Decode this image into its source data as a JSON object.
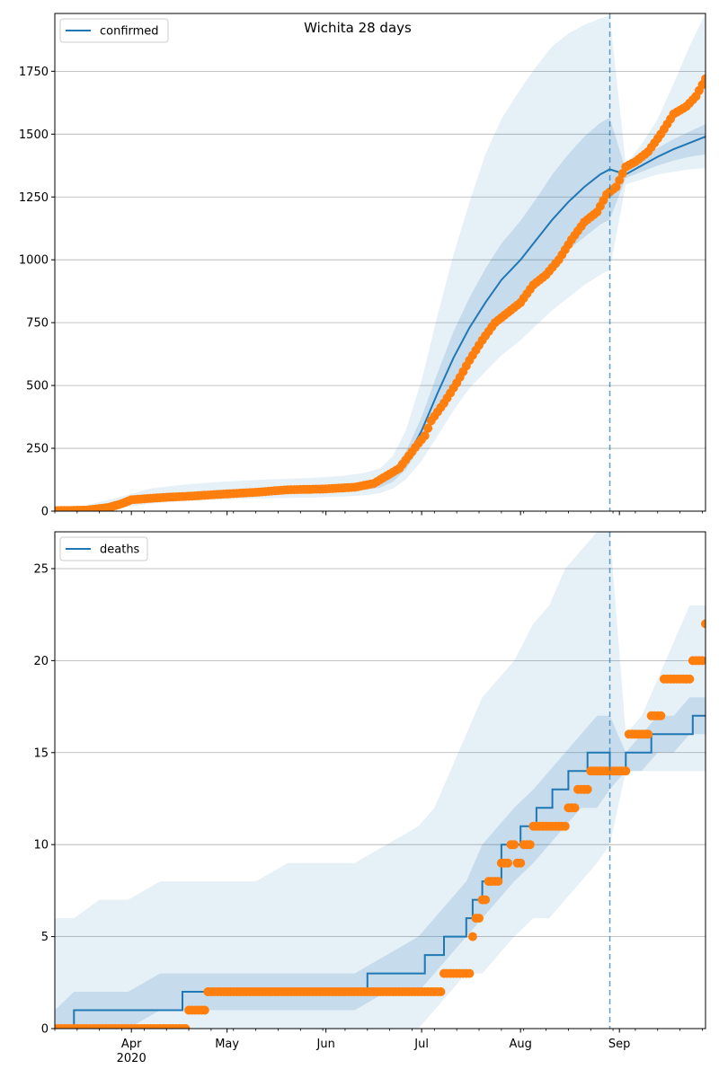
{
  "chart_data": [
    {
      "type": "line",
      "title": "Wichita 28 days",
      "legend": {
        "entries": [
          "confirmed"
        ],
        "placement": "top-left"
      },
      "xlabel": "",
      "ylabel": "",
      "x_range": [
        "2020-03-08",
        "2020-09-28"
      ],
      "ylim": [
        0,
        1980
      ],
      "yticks": [
        0,
        250,
        500,
        750,
        1000,
        1250,
        1500,
        1750
      ],
      "grid": "horizontal",
      "forecast_start": "2020-08-29",
      "colors": {
        "model": "#1f77b4",
        "observed": "#ff7f0e",
        "band": "#1f77b4"
      },
      "model_x": [
        "2020-03-08",
        "2020-03-18",
        "2020-03-28",
        "2020-04-07",
        "2020-04-17",
        "2020-04-27",
        "2020-05-07",
        "2020-05-17",
        "2020-05-27",
        "2020-06-06",
        "2020-06-13",
        "2020-06-18",
        "2020-06-22",
        "2020-06-26",
        "2020-07-01",
        "2020-07-06",
        "2020-07-11",
        "2020-07-16",
        "2020-07-21",
        "2020-07-26",
        "2020-08-01",
        "2020-08-06",
        "2020-08-11",
        "2020-08-16",
        "2020-08-21",
        "2020-08-26",
        "2020-08-29",
        "2020-09-03",
        "2020-09-08",
        "2020-09-13",
        "2020-09-18",
        "2020-09-23",
        "2020-09-28"
      ],
      "model_y": [
        2,
        10,
        30,
        55,
        65,
        72,
        78,
        82,
        86,
        92,
        100,
        112,
        140,
        200,
        320,
        470,
        610,
        730,
        830,
        920,
        1000,
        1080,
        1160,
        1230,
        1290,
        1340,
        1360,
        1340,
        1375,
        1410,
        1440,
        1465,
        1490
      ],
      "band_inner_low": [
        0,
        6,
        22,
        45,
        55,
        62,
        67,
        70,
        73,
        78,
        84,
        94,
        117,
        165,
        265,
        390,
        510,
        615,
        700,
        780,
        850,
        915,
        980,
        1040,
        1090,
        1140,
        1160,
        1325,
        1350,
        1375,
        1395,
        1410,
        1420
      ],
      "band_inner_high": [
        4,
        14,
        38,
        65,
        75,
        82,
        89,
        94,
        98,
        106,
        116,
        130,
        163,
        235,
        375,
        550,
        715,
        850,
        965,
        1065,
        1155,
        1245,
        1340,
        1420,
        1490,
        1545,
        1565,
        1355,
        1400,
        1445,
        1480,
        1510,
        1540
      ],
      "band_outer_low": [
        0,
        2,
        12,
        30,
        40,
        46,
        50,
        52,
        54,
        58,
        63,
        72,
        90,
        125,
        200,
        300,
        400,
        490,
        555,
        620,
        680,
        740,
        800,
        850,
        900,
        940,
        960,
        1300,
        1320,
        1340,
        1350,
        1360,
        1365
      ],
      "band_outer_high": [
        10,
        24,
        55,
        90,
        105,
        115,
        122,
        128,
        132,
        140,
        152,
        170,
        220,
        320,
        520,
        780,
        1020,
        1230,
        1420,
        1560,
        1680,
        1770,
        1850,
        1900,
        1935,
        1960,
        1970,
        1380,
        1460,
        1560,
        1700,
        1850,
        1980
      ],
      "observed_x": [
        "2020-03-08",
        "2020-03-18",
        "2020-03-25",
        "2020-03-29",
        "2020-04-01",
        "2020-04-06",
        "2020-04-12",
        "2020-04-20",
        "2020-04-30",
        "2020-05-10",
        "2020-05-20",
        "2020-05-31",
        "2020-06-10",
        "2020-06-16",
        "2020-06-20",
        "2020-06-24",
        "2020-06-27",
        "2020-06-30",
        "2020-07-02",
        "2020-07-04",
        "2020-07-08",
        "2020-07-12",
        "2020-07-16",
        "2020-07-20",
        "2020-07-24",
        "2020-07-28",
        "2020-08-01",
        "2020-08-05",
        "2020-08-09",
        "2020-08-13",
        "2020-08-17",
        "2020-08-21",
        "2020-08-25",
        "2020-08-28",
        "2020-08-31",
        "2020-09-03",
        "2020-09-06",
        "2020-09-10",
        "2020-09-14",
        "2020-09-18",
        "2020-09-22",
        "2020-09-25",
        "2020-09-28"
      ],
      "observed_y": [
        2,
        4,
        15,
        30,
        45,
        50,
        55,
        60,
        68,
        75,
        85,
        88,
        95,
        110,
        140,
        170,
        220,
        270,
        300,
        360,
        430,
        510,
        600,
        680,
        750,
        790,
        830,
        900,
        940,
        1000,
        1080,
        1150,
        1190,
        1260,
        1290,
        1370,
        1390,
        1430,
        1500,
        1580,
        1610,
        1650,
        1720
      ]
    },
    {
      "type": "line",
      "title": "",
      "legend": {
        "entries": [
          "deaths"
        ],
        "placement": "top-left"
      },
      "xlabel": "",
      "ylabel": "",
      "x_range": [
        "2020-03-08",
        "2020-09-28"
      ],
      "ylim": [
        0,
        27
      ],
      "yticks": [
        0,
        5,
        10,
        15,
        20,
        25
      ],
      "grid": "horizontal",
      "forecast_start": "2020-08-29",
      "xticks": [
        {
          "date": "2020-04-01",
          "label": "Apr",
          "sublabel": "2020"
        },
        {
          "date": "2020-05-01",
          "label": "May",
          "sublabel": ""
        },
        {
          "date": "2020-06-01",
          "label": "Jun",
          "sublabel": ""
        },
        {
          "date": "2020-07-01",
          "label": "Jul",
          "sublabel": ""
        },
        {
          "date": "2020-08-01",
          "label": "Aug",
          "sublabel": ""
        },
        {
          "date": "2020-09-01",
          "label": "Sep",
          "sublabel": ""
        }
      ],
      "colors": {
        "model": "#1f77b4",
        "observed": "#ff7f0e",
        "band": "#1f77b4"
      },
      "model_steps": [
        {
          "x": "2020-03-08",
          "y": 0
        },
        {
          "x": "2020-03-14",
          "y": 1
        },
        {
          "x": "2020-04-17",
          "y": 2
        },
        {
          "x": "2020-06-14",
          "y": 3
        },
        {
          "x": "2020-07-02",
          "y": 4
        },
        {
          "x": "2020-07-08",
          "y": 5
        },
        {
          "x": "2020-07-15",
          "y": 6
        },
        {
          "x": "2020-07-17",
          "y": 7
        },
        {
          "x": "2020-07-20",
          "y": 8
        },
        {
          "x": "2020-07-26",
          "y": 10
        },
        {
          "x": "2020-08-01",
          "y": 11
        },
        {
          "x": "2020-08-06",
          "y": 12
        },
        {
          "x": "2020-08-11",
          "y": 13
        },
        {
          "x": "2020-08-16",
          "y": 14
        },
        {
          "x": "2020-08-22",
          "y": 15
        },
        {
          "x": "2020-08-29",
          "y": 14
        },
        {
          "x": "2020-09-03",
          "y": 15
        },
        {
          "x": "2020-09-11",
          "y": 16
        },
        {
          "x": "2020-09-24",
          "y": 17
        },
        {
          "x": "2020-09-28",
          "y": 17
        }
      ],
      "band_x": [
        "2020-03-08",
        "2020-03-14",
        "2020-03-22",
        "2020-03-31",
        "2020-04-10",
        "2020-04-20",
        "2020-05-01",
        "2020-05-10",
        "2020-05-20",
        "2020-06-01",
        "2020-06-10",
        "2020-06-20",
        "2020-06-30",
        "2020-07-05",
        "2020-07-10",
        "2020-07-15",
        "2020-07-20",
        "2020-07-25",
        "2020-07-30",
        "2020-08-05",
        "2020-08-10",
        "2020-08-15",
        "2020-08-20",
        "2020-08-25",
        "2020-08-29",
        "2020-09-03",
        "2020-09-08",
        "2020-09-13",
        "2020-09-18",
        "2020-09-23",
        "2020-09-28"
      ],
      "band_inner_low": [
        0,
        0,
        0,
        0,
        1,
        1,
        1,
        1,
        1,
        1,
        1,
        2,
        2,
        3,
        4,
        5,
        6,
        7,
        8,
        9,
        10,
        11,
        12,
        12,
        13,
        14,
        14,
        15,
        15,
        16,
        16
      ],
      "band_inner_high": [
        1,
        2,
        2,
        2,
        3,
        3,
        3,
        3,
        3,
        3,
        3,
        4,
        5,
        6,
        7,
        8,
        10,
        11,
        12,
        13,
        14,
        15,
        16,
        17,
        17,
        15,
        16,
        17,
        17,
        18,
        18
      ],
      "band_outer_low": [
        0,
        0,
        0,
        0,
        0,
        0,
        0,
        0,
        0,
        0,
        0,
        0,
        0,
        1,
        2,
        3,
        3,
        4,
        5,
        6,
        6,
        7,
        8,
        9,
        10,
        14,
        14,
        14,
        14,
        14,
        14
      ],
      "band_outer_high": [
        6,
        6,
        7,
        7,
        8,
        8,
        8,
        8,
        9,
        9,
        9,
        10,
        11,
        12,
        14,
        16,
        18,
        19,
        20,
        22,
        23,
        25,
        26,
        27,
        27,
        16,
        17,
        19,
        21,
        23,
        23
      ],
      "observed_x": [
        "2020-03-08",
        "2020-04-15",
        "2020-04-19",
        "2020-04-25",
        "2020-05-05",
        "2020-05-15",
        "2020-05-25",
        "2020-06-05",
        "2020-06-15",
        "2020-06-25",
        "2020-07-04",
        "2020-07-08",
        "2020-07-12",
        "2020-07-16",
        "2020-07-17",
        "2020-07-18",
        "2020-07-20",
        "2020-07-22",
        "2020-07-26",
        "2020-07-29",
        "2020-07-31",
        "2020-08-02",
        "2020-08-05",
        "2020-08-09",
        "2020-08-13",
        "2020-08-16",
        "2020-08-19",
        "2020-08-23",
        "2020-08-27",
        "2020-08-31",
        "2020-09-04",
        "2020-09-07",
        "2020-09-11",
        "2020-09-15",
        "2020-09-20",
        "2020-09-24",
        "2020-09-28"
      ],
      "observed_y": [
        0,
        0,
        1,
        2,
        2,
        2,
        2,
        2,
        2,
        2,
        2,
        3,
        3,
        3,
        5,
        6,
        7,
        8,
        9,
        10,
        9,
        10,
        11,
        11,
        11,
        12,
        13,
        14,
        14,
        14,
        16,
        16,
        17,
        19,
        19,
        20,
        22
      ]
    }
  ]
}
